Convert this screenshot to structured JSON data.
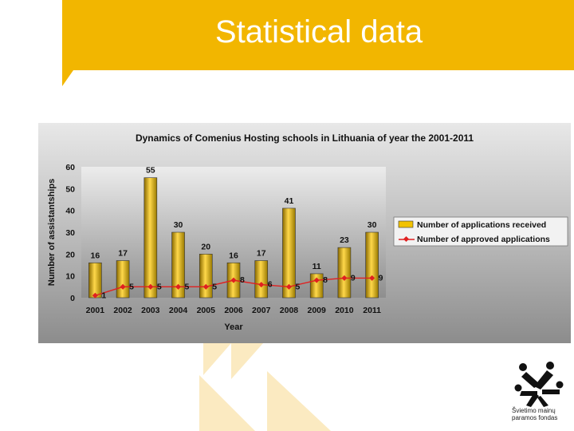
{
  "slide": {
    "title": "Statistical data",
    "colors": {
      "banner": "#f2b600",
      "deco": "#fbeac1"
    }
  },
  "logo": {
    "icon": "people-figures-logo-icon",
    "line1": "Švietimo mainų",
    "line2": "paramos fondas"
  },
  "chart_data": {
    "type": "bar",
    "title": "Dynamics of Comenius Hosting schools in Lithuania of year the 2001-2011",
    "xlabel": "Year",
    "ylabel": "Number of assistantships",
    "ylim": [
      0,
      60
    ],
    "yticks": [
      0,
      10,
      20,
      30,
      40,
      50,
      60
    ],
    "categories": [
      "2001",
      "2002",
      "2003",
      "2004",
      "2005",
      "2006",
      "2007",
      "2008",
      "2009",
      "2010",
      "2011"
    ],
    "series": [
      {
        "name": "Number of applications received",
        "type": "bar",
        "color": "#e8b800",
        "values": [
          16,
          17,
          55,
          30,
          20,
          16,
          17,
          41,
          11,
          23,
          30
        ]
      },
      {
        "name": "Number of approved applications",
        "type": "line",
        "color": "#e02020",
        "values": [
          1,
          5,
          5,
          5,
          5,
          8,
          6,
          5,
          8,
          9,
          9
        ]
      }
    ],
    "legend_position": "right",
    "grid": false
  }
}
